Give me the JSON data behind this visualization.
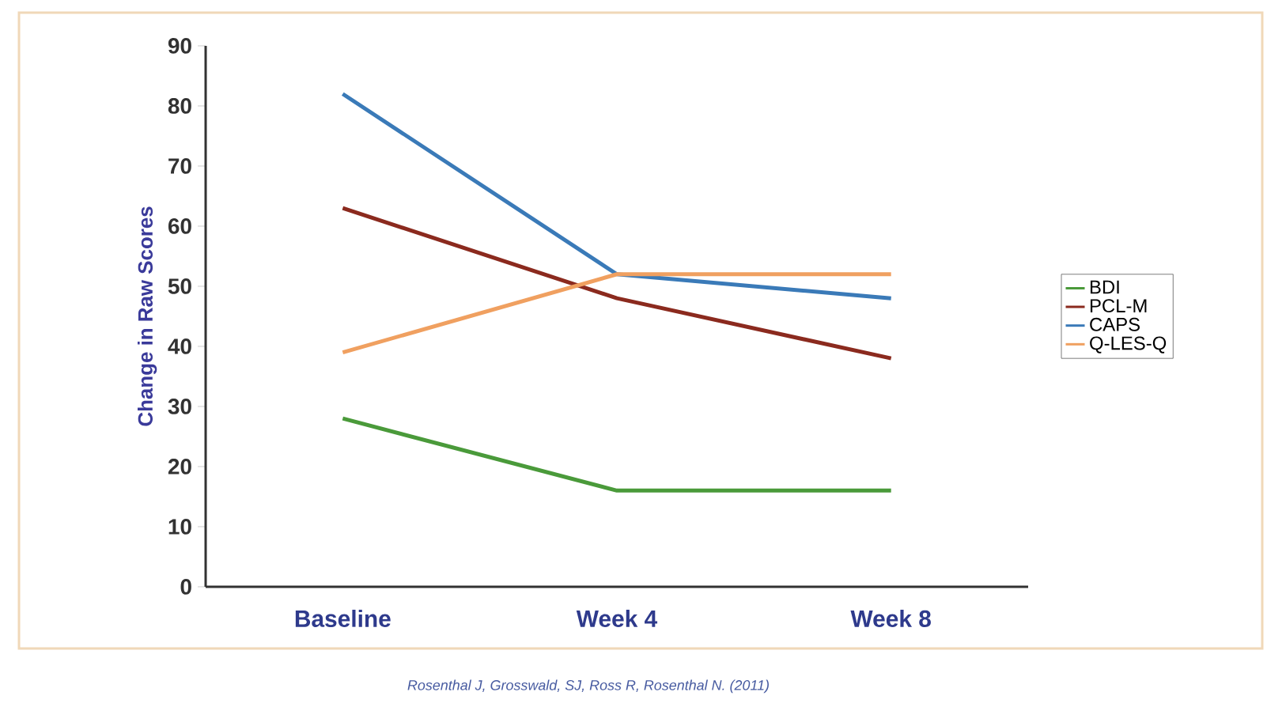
{
  "chart_data": {
    "type": "line",
    "ylabel": "Change in Raw Scores",
    "categories": [
      "Baseline",
      "Week 4",
      "Week 8"
    ],
    "series": [
      {
        "name": "BDI",
        "color": "#4a9a3a",
        "values": [
          28,
          16,
          16
        ]
      },
      {
        "name": "PCL-M",
        "color": "#8b2a1e",
        "values": [
          63,
          48,
          38
        ]
      },
      {
        "name": "CAPS",
        "color": "#3a7ab8",
        "values": [
          82,
          52,
          48
        ]
      },
      {
        "name": "Q-LES-Q",
        "color": "#f0a060",
        "values": [
          39,
          52,
          52
        ]
      }
    ],
    "ylim": [
      0,
      90
    ],
    "yticks": [
      0,
      10,
      20,
      30,
      40,
      50,
      60,
      70,
      80,
      90
    ],
    "legend": "right",
    "annotations": [
      "Rosenthal J, Grosswald, SJ, Ross R, Rosenthal N.  (2011)"
    ]
  }
}
